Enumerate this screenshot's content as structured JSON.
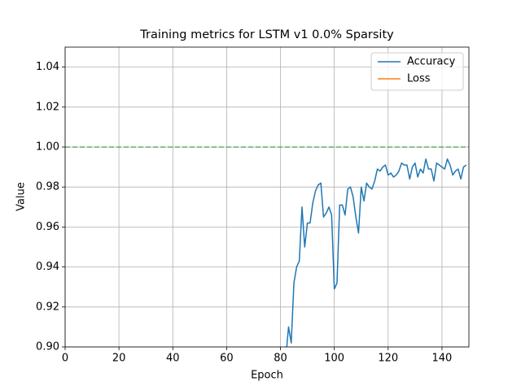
{
  "chart_data": {
    "type": "line",
    "title": "Training metrics for LSTM v1 0.0% Sparsity",
    "xlabel": "Epoch",
    "ylabel": "Value",
    "x": [
      82,
      83,
      84,
      85,
      86,
      87,
      88,
      89,
      90,
      91,
      92,
      93,
      94,
      95,
      96,
      97,
      98,
      99,
      100,
      101,
      102,
      103,
      104,
      105,
      106,
      107,
      108,
      109,
      110,
      111,
      112,
      113,
      114,
      115,
      116,
      117,
      118,
      119,
      120,
      121,
      122,
      123,
      124,
      125,
      126,
      127,
      128,
      129,
      130,
      131,
      132,
      133,
      134,
      135,
      136,
      137,
      138,
      139,
      140,
      141,
      142,
      143,
      144,
      145,
      146,
      147,
      148,
      149
    ],
    "series": [
      {
        "name": "Accuracy",
        "color": "#1f77b4",
        "values": [
          0.895,
          0.91,
          0.902,
          0.932,
          0.94,
          0.943,
          0.97,
          0.95,
          0.962,
          0.962,
          0.972,
          0.978,
          0.981,
          0.982,
          0.965,
          0.967,
          0.97,
          0.966,
          0.929,
          0.932,
          0.971,
          0.971,
          0.966,
          0.979,
          0.98,
          0.975,
          0.965,
          0.957,
          0.98,
          0.973,
          0.982,
          0.98,
          0.979,
          0.983,
          0.989,
          0.988,
          0.99,
          0.991,
          0.986,
          0.987,
          0.985,
          0.986,
          0.988,
          0.992,
          0.991,
          0.991,
          0.984,
          0.99,
          0.992,
          0.985,
          0.989,
          0.987,
          0.994,
          0.989,
          0.989,
          0.983,
          0.992,
          0.991,
          0.99,
          0.989,
          0.994,
          0.991,
          0.986,
          0.988,
          0.989,
          0.984,
          0.99,
          0.991
        ]
      },
      {
        "name": "Loss",
        "color": "#ff7f0e",
        "values": [
          null,
          null,
          null,
          null,
          null,
          null,
          null,
          null,
          null,
          null,
          null,
          null,
          null,
          null,
          null,
          null,
          null,
          null,
          null,
          null,
          null,
          null,
          null,
          null,
          null,
          null,
          null,
          null,
          null,
          null,
          null,
          null,
          null,
          null,
          null,
          null,
          null,
          null,
          null,
          null,
          null,
          null,
          null,
          null,
          null,
          null,
          null,
          null,
          null,
          null,
          null,
          null,
          null,
          null,
          null,
          null,
          null,
          null,
          null,
          null,
          null,
          null,
          null,
          null,
          null,
          null,
          null,
          null
        ]
      }
    ],
    "hline": {
      "value": 1.0,
      "color": "#2ca02c"
    },
    "xlim": [
      0,
      150
    ],
    "xticks": [
      0,
      20,
      40,
      60,
      80,
      100,
      120,
      140
    ],
    "ylim": [
      0.9,
      1.05
    ],
    "yticks": [
      {
        "value": 0.9,
        "label": "0.90"
      },
      0.92,
      0.94,
      0.96,
      0.98,
      {
        "value": 1.0,
        "label": "1.00"
      },
      1.02,
      1.04
    ],
    "grid": true,
    "legend": "upper right"
  }
}
